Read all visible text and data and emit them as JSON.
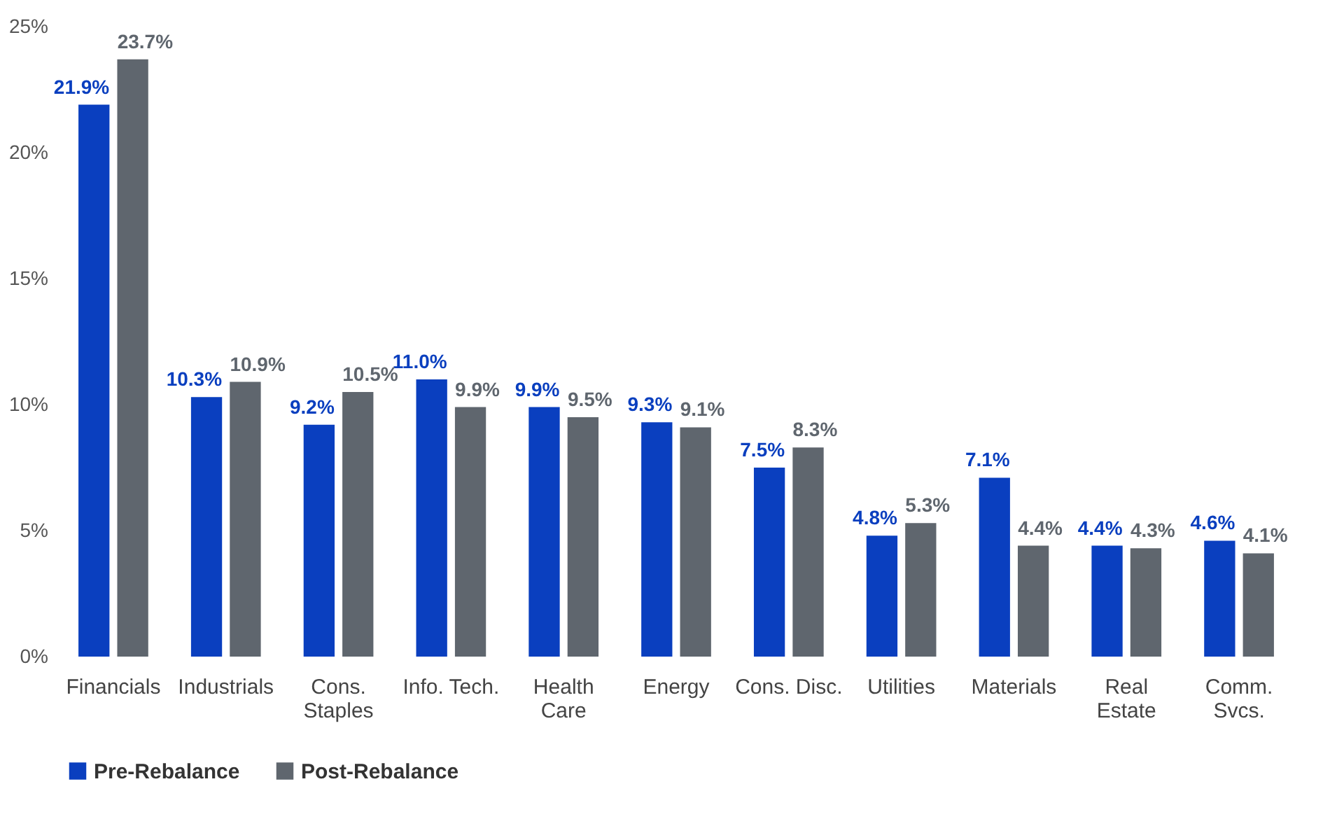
{
  "chart_data": {
    "type": "bar",
    "categories": [
      "Financials",
      "Industrials",
      "Cons.\nStaples",
      "Info. Tech.",
      "Health\nCare",
      "Energy",
      "Cons. Disc.",
      "Utilities",
      "Materials",
      "Real\nEstate",
      "Comm.\nSvcs."
    ],
    "series": [
      {
        "name": "Pre-Rebalance",
        "color": "#0a3fbf",
        "values": [
          21.9,
          10.3,
          9.2,
          11.0,
          9.9,
          9.3,
          7.5,
          4.8,
          7.1,
          4.4,
          4.6
        ],
        "value_labels": [
          "21.9%",
          "10.3%",
          "9.2%",
          "11.0%",
          "9.9%",
          "9.3%",
          "7.5%",
          "4.8%",
          "7.1%",
          "4.4%",
          "4.6%"
        ]
      },
      {
        "name": "Post-Rebalance",
        "color": "#5f666e",
        "values": [
          23.7,
          10.9,
          10.5,
          9.9,
          9.5,
          9.1,
          8.3,
          5.3,
          4.4,
          4.3,
          4.1
        ],
        "value_labels": [
          "23.7%",
          "10.9%",
          "10.5%",
          "9.9%",
          "9.5%",
          "9.1%",
          "8.3%",
          "5.3%",
          "4.4%",
          "4.3%",
          "4.1%"
        ]
      }
    ],
    "ylim": [
      0,
      25
    ],
    "yticks": [
      {
        "value": 0,
        "label": "0%"
      },
      {
        "value": 5,
        "label": "5%"
      },
      {
        "value": 10,
        "label": "10%"
      },
      {
        "value": 15,
        "label": "15%"
      },
      {
        "value": 20,
        "label": "20%"
      },
      {
        "value": 25,
        "label": "25%"
      }
    ],
    "grid": false,
    "legend": "bottom"
  }
}
